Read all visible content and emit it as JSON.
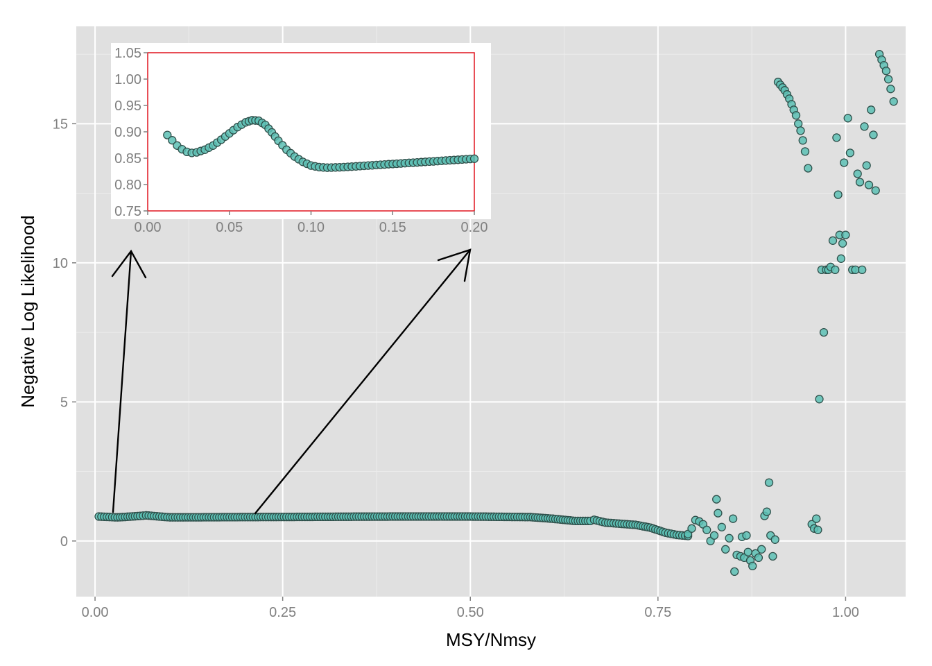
{
  "chart_data": [
    {
      "id": "main",
      "type": "scatter",
      "xlabel": "MSY/Nmsy",
      "ylabel": "Negative Log Likelihood",
      "xlim": [
        -0.025,
        1.08
      ],
      "ylim": [
        -2.0,
        18.5
      ],
      "xticks": [
        0.0,
        0.25,
        0.5,
        0.75,
        1.0
      ],
      "xtick_labels": [
        "0.00",
        "0.25",
        "0.50",
        "0.75",
        "1.00"
      ],
      "yticks": [
        0,
        5,
        10,
        15
      ],
      "ytick_labels": [
        "0",
        "5",
        "10",
        "15"
      ],
      "grid": true,
      "background": "#e0e0e0",
      "point_color": "#5cc0b4",
      "point_edge": "#2f4f4a",
      "curve": [
        [
          0.005,
          0.88
        ],
        [
          0.03,
          0.85
        ],
        [
          0.06,
          0.9
        ],
        [
          0.068,
          0.92
        ],
        [
          0.1,
          0.85
        ],
        [
          0.2,
          0.86
        ],
        [
          0.3,
          0.87
        ],
        [
          0.4,
          0.88
        ],
        [
          0.5,
          0.88
        ],
        [
          0.58,
          0.86
        ],
        [
          0.61,
          0.8
        ],
        [
          0.64,
          0.72
        ],
        [
          0.66,
          0.72
        ],
        [
          0.665,
          0.76
        ],
        [
          0.68,
          0.66
        ],
        [
          0.72,
          0.58
        ],
        [
          0.74,
          0.48
        ],
        [
          0.76,
          0.3
        ],
        [
          0.775,
          0.22
        ],
        [
          0.79,
          0.18
        ]
      ],
      "scatter_points": [
        [
          0.79,
          0.25
        ],
        [
          0.795,
          0.45
        ],
        [
          0.8,
          0.75
        ],
        [
          0.805,
          0.7
        ],
        [
          0.81,
          0.6
        ],
        [
          0.815,
          0.4
        ],
        [
          0.82,
          0.0
        ],
        [
          0.825,
          0.2
        ],
        [
          0.828,
          1.5
        ],
        [
          0.83,
          1.0
        ],
        [
          0.835,
          0.5
        ],
        [
          0.84,
          -0.3
        ],
        [
          0.845,
          0.1
        ],
        [
          0.85,
          0.8
        ],
        [
          0.852,
          -1.1
        ],
        [
          0.855,
          -0.5
        ],
        [
          0.86,
          -0.55
        ],
        [
          0.862,
          0.15
        ],
        [
          0.865,
          -0.6
        ],
        [
          0.868,
          0.2
        ],
        [
          0.87,
          -0.4
        ],
        [
          0.873,
          -0.7
        ],
        [
          0.876,
          -0.9
        ],
        [
          0.88,
          -0.45
        ],
        [
          0.884,
          -0.6
        ],
        [
          0.888,
          -0.3
        ],
        [
          0.892,
          0.9
        ],
        [
          0.895,
          1.05
        ],
        [
          0.898,
          2.1
        ],
        [
          0.9,
          0.2
        ],
        [
          0.903,
          -0.55
        ],
        [
          0.906,
          0.05
        ],
        [
          0.955,
          0.6
        ],
        [
          0.958,
          0.45
        ],
        [
          0.961,
          0.8
        ],
        [
          0.963,
          0.4
        ],
        [
          0.965,
          5.1
        ],
        [
          0.968,
          9.75
        ],
        [
          0.971,
          7.5
        ],
        [
          0.974,
          9.75
        ],
        [
          0.977,
          9.75
        ],
        [
          0.98,
          9.85
        ],
        [
          0.983,
          10.8
        ],
        [
          0.986,
          9.75
        ],
        [
          0.988,
          14.5
        ],
        [
          0.99,
          12.45
        ],
        [
          0.992,
          11.0
        ],
        [
          0.994,
          10.15
        ],
        [
          0.996,
          10.7
        ],
        [
          0.998,
          13.6
        ],
        [
          1.0,
          11.0
        ],
        [
          1.003,
          15.2
        ],
        [
          1.006,
          13.95
        ],
        [
          1.009,
          9.75
        ],
        [
          1.013,
          9.75
        ],
        [
          1.016,
          13.2
        ],
        [
          1.019,
          12.9
        ],
        [
          1.022,
          9.75
        ],
        [
          1.025,
          14.9
        ],
        [
          1.028,
          13.5
        ],
        [
          1.031,
          12.8
        ],
        [
          1.034,
          15.5
        ],
        [
          1.037,
          14.6
        ],
        [
          1.04,
          12.6
        ],
        [
          0.91,
          16.5
        ],
        [
          0.913,
          16.4
        ],
        [
          0.916,
          16.3
        ],
        [
          0.919,
          16.2
        ],
        [
          0.922,
          16.05
        ],
        [
          0.925,
          15.9
        ],
        [
          0.928,
          15.7
        ],
        [
          0.931,
          15.5
        ],
        [
          0.934,
          15.3
        ],
        [
          0.937,
          15.0
        ],
        [
          0.94,
          14.75
        ],
        [
          0.943,
          14.4
        ],
        [
          0.946,
          14.0
        ],
        [
          0.95,
          13.4
        ],
        [
          1.045,
          17.5
        ],
        [
          1.048,
          17.3
        ],
        [
          1.051,
          17.1
        ],
        [
          1.054,
          16.9
        ],
        [
          1.057,
          16.6
        ],
        [
          1.06,
          16.25
        ],
        [
          1.064,
          15.8
        ]
      ]
    },
    {
      "id": "inset",
      "type": "scatter",
      "xlim": [
        0.0,
        0.2
      ],
      "ylim": [
        0.75,
        1.05
      ],
      "xticks": [
        0.0,
        0.05,
        0.1,
        0.15,
        0.2
      ],
      "xtick_labels": [
        "0.00",
        "0.05",
        "0.10",
        "0.15",
        "0.20"
      ],
      "yticks": [
        0.75,
        0.8,
        0.85,
        0.9,
        0.95,
        1.0,
        1.05
      ],
      "ytick_labels": [
        "0.75",
        "0.80",
        "0.85",
        "0.90",
        "0.95",
        "1.00",
        "1.05"
      ],
      "border_color": "#e0141e",
      "curve": [
        [
          0.012,
          0.894
        ],
        [
          0.015,
          0.884
        ],
        [
          0.018,
          0.874
        ],
        [
          0.021,
          0.867
        ],
        [
          0.024,
          0.862
        ],
        [
          0.027,
          0.86
        ],
        [
          0.03,
          0.861
        ],
        [
          0.035,
          0.866
        ],
        [
          0.04,
          0.874
        ],
        [
          0.045,
          0.885
        ],
        [
          0.05,
          0.897
        ],
        [
          0.055,
          0.909
        ],
        [
          0.06,
          0.918
        ],
        [
          0.064,
          0.922
        ],
        [
          0.068,
          0.921
        ],
        [
          0.072,
          0.913
        ],
        [
          0.076,
          0.899
        ],
        [
          0.08,
          0.883
        ],
        [
          0.085,
          0.866
        ],
        [
          0.09,
          0.853
        ],
        [
          0.095,
          0.843
        ],
        [
          0.1,
          0.836
        ],
        [
          0.105,
          0.833
        ],
        [
          0.11,
          0.832
        ],
        [
          0.12,
          0.833
        ],
        [
          0.13,
          0.835
        ],
        [
          0.14,
          0.837
        ],
        [
          0.15,
          0.839
        ],
        [
          0.16,
          0.841
        ],
        [
          0.17,
          0.843
        ],
        [
          0.18,
          0.845
        ],
        [
          0.19,
          0.847
        ],
        [
          0.2,
          0.849
        ]
      ]
    }
  ]
}
